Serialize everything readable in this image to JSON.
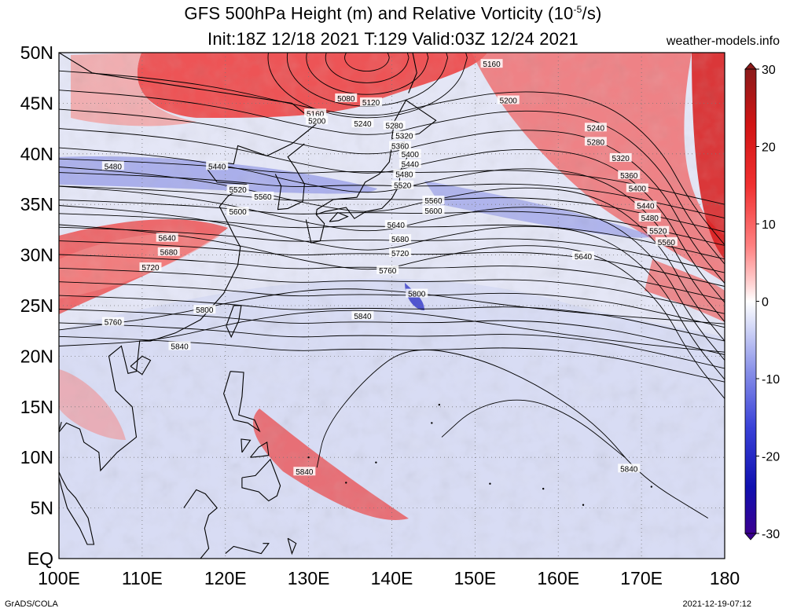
{
  "title": {
    "line1_prefix": "GFS 500hPa Height (m) and Relative Vorticity (10",
    "line1_exp": "-5",
    "line1_suffix": "/s)",
    "line2": "Init:18Z 12/18 2021 T:129 Valid:03Z 12/24 2021"
  },
  "site": "weather-models.info",
  "footer": {
    "left": "GrADS/COLA",
    "right": "2021-12-19-07:12"
  },
  "map": {
    "lon_range": [
      100,
      180
    ],
    "lat_range": [
      0,
      50
    ],
    "grid": "dotted",
    "lat_labels": [
      "50N",
      "45N",
      "40N",
      "35N",
      "30N",
      "25N",
      "20N",
      "15N",
      "10N",
      "5N",
      "EQ"
    ],
    "lon_labels": [
      "100E",
      "110E",
      "120E",
      "130E",
      "140E",
      "150E",
      "160E",
      "170E",
      "180"
    ],
    "contour_interval_m": 40,
    "contour_labels": [
      {
        "text": "5160",
        "lon": 152,
        "lat": 48.9
      },
      {
        "text": "5080",
        "lon": 134.5,
        "lat": 45.5
      },
      {
        "text": "5120",
        "lon": 137.5,
        "lat": 45.1
      },
      {
        "text": "5200",
        "lon": 154,
        "lat": 45.3
      },
      {
        "text": "5160",
        "lon": 130.8,
        "lat": 44.0
      },
      {
        "text": "5200",
        "lon": 131.0,
        "lat": 43.3
      },
      {
        "text": "5240",
        "lon": 136.5,
        "lat": 43.0
      },
      {
        "text": "5280",
        "lon": 140.3,
        "lat": 42.8
      },
      {
        "text": "5320",
        "lon": 141.5,
        "lat": 41.8
      },
      {
        "text": "5360",
        "lon": 141.0,
        "lat": 40.8
      },
      {
        "text": "5400",
        "lon": 142.2,
        "lat": 40.0
      },
      {
        "text": "5440",
        "lon": 142.2,
        "lat": 39.0
      },
      {
        "text": "5480",
        "lon": 141.5,
        "lat": 38.0
      },
      {
        "text": "5520",
        "lon": 141.3,
        "lat": 36.9
      },
      {
        "text": "5560",
        "lon": 145.0,
        "lat": 35.4
      },
      {
        "text": "5600",
        "lon": 145.0,
        "lat": 34.4
      },
      {
        "text": "5640",
        "lon": 140.5,
        "lat": 33.0
      },
      {
        "text": "5680",
        "lon": 141.0,
        "lat": 31.6
      },
      {
        "text": "5720",
        "lon": 141.0,
        "lat": 30.2
      },
      {
        "text": "5760",
        "lon": 139.5,
        "lat": 28.5
      },
      {
        "text": "5800",
        "lon": 143.0,
        "lat": 26.2
      },
      {
        "text": "5840",
        "lon": 136.5,
        "lat": 24.0
      },
      {
        "text": "5240",
        "lon": 164.5,
        "lat": 42.6
      },
      {
        "text": "5280",
        "lon": 164.5,
        "lat": 41.2
      },
      {
        "text": "5320",
        "lon": 167.5,
        "lat": 39.6
      },
      {
        "text": "5360",
        "lon": 168.5,
        "lat": 37.9
      },
      {
        "text": "5400",
        "lon": 169.5,
        "lat": 36.6
      },
      {
        "text": "5440",
        "lon": 170.5,
        "lat": 34.9
      },
      {
        "text": "5480",
        "lon": 171.0,
        "lat": 33.7
      },
      {
        "text": "5520",
        "lon": 172.0,
        "lat": 32.4
      },
      {
        "text": "5560",
        "lon": 173.0,
        "lat": 31.3
      },
      {
        "text": "5640",
        "lon": 163.0,
        "lat": 29.9
      },
      {
        "text": "5480",
        "lon": 106.5,
        "lat": 38.8
      },
      {
        "text": "5440",
        "lon": 119.0,
        "lat": 38.8
      },
      {
        "text": "5520",
        "lon": 121.5,
        "lat": 36.5
      },
      {
        "text": "5560",
        "lon": 124.5,
        "lat": 35.8
      },
      {
        "text": "5600",
        "lon": 121.5,
        "lat": 34.3
      },
      {
        "text": "5640",
        "lon": 113.0,
        "lat": 31.7
      },
      {
        "text": "5680",
        "lon": 113.2,
        "lat": 30.3
      },
      {
        "text": "5720",
        "lon": 111.0,
        "lat": 28.8
      },
      {
        "text": "5800",
        "lon": 117.5,
        "lat": 24.6
      },
      {
        "text": "5760",
        "lon": 106.5,
        "lat": 23.4
      },
      {
        "text": "5840",
        "lon": 114.5,
        "lat": 21.0
      },
      {
        "text": "5840",
        "lon": 129.5,
        "lat": 8.6
      },
      {
        "text": "5840",
        "lon": 168.5,
        "lat": 8.9
      }
    ]
  },
  "colorbar": {
    "min": -30,
    "max": 30,
    "ticks": [
      30,
      20,
      10,
      0,
      -10,
      -20,
      -30
    ],
    "colors_top_to_bottom": [
      "#8b1a1a",
      "#d11414",
      "#f03030",
      "#ff8080",
      "#ffd0d0",
      "#ffffff",
      "#d8dcf8",
      "#8890e8",
      "#3a42d8",
      "#1010b0",
      "#3a0090"
    ]
  }
}
